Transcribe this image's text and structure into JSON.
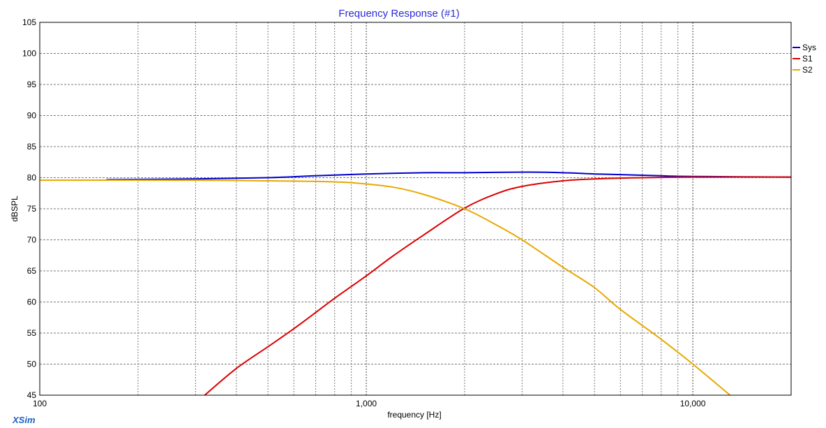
{
  "app": {
    "brand": "XSim"
  },
  "chart_data": {
    "type": "line",
    "title": "Frequency Response (#1)",
    "xlabel": "frequency [Hz]",
    "ylabel": "dBSPL",
    "xscale": "log",
    "xlim": [
      100,
      20000
    ],
    "ylim": [
      45,
      105
    ],
    "grid": true,
    "legend_position": "top-right",
    "x_ticks": [
      {
        "value": 100,
        "label": "100"
      },
      {
        "value": 1000,
        "label": "1,000"
      },
      {
        "value": 10000,
        "label": "10,000"
      }
    ],
    "y_ticks": [
      {
        "value": 105,
        "label": "105"
      },
      {
        "value": 100,
        "label": "100"
      },
      {
        "value": 95,
        "label": "95"
      },
      {
        "value": 90,
        "label": "90"
      },
      {
        "value": 85,
        "label": "85"
      },
      {
        "value": 80,
        "label": "80"
      },
      {
        "value": 75,
        "label": "75"
      },
      {
        "value": 70,
        "label": "70"
      },
      {
        "value": 65,
        "label": "65"
      },
      {
        "value": 60,
        "label": "60"
      },
      {
        "value": 55,
        "label": "55"
      },
      {
        "value": 50,
        "label": "50"
      },
      {
        "value": 45,
        "label": "45"
      }
    ],
    "series": [
      {
        "name": "Sys",
        "color": "#0000cc",
        "points": [
          [
            160,
            79.7
          ],
          [
            300,
            79.8
          ],
          [
            500,
            80.0
          ],
          [
            700,
            80.3
          ],
          [
            1000,
            80.6
          ],
          [
            1500,
            80.8
          ],
          [
            2000,
            80.8
          ],
          [
            3000,
            80.9
          ],
          [
            4000,
            80.8
          ],
          [
            5000,
            80.6
          ],
          [
            6000,
            80.5
          ],
          [
            8000,
            80.3
          ],
          [
            10000,
            80.2
          ],
          [
            20000,
            80.1
          ]
        ]
      },
      {
        "name": "S1",
        "color": "#dd0000",
        "points": [
          [
            320,
            45.0
          ],
          [
            400,
            49.3
          ],
          [
            500,
            52.8
          ],
          [
            600,
            55.7
          ],
          [
            700,
            58.3
          ],
          [
            800,
            60.6
          ],
          [
            1000,
            64.2
          ],
          [
            1200,
            67.3
          ],
          [
            1500,
            70.8
          ],
          [
            2000,
            75.1
          ],
          [
            2500,
            77.4
          ],
          [
            3000,
            78.6
          ],
          [
            4000,
            79.5
          ],
          [
            5000,
            79.8
          ],
          [
            7000,
            80.0
          ],
          [
            10000,
            80.1
          ],
          [
            20000,
            80.1
          ]
        ]
      },
      {
        "name": "S2",
        "color": "#e8a800",
        "points": [
          [
            100,
            79.6
          ],
          [
            300,
            79.6
          ],
          [
            500,
            79.5
          ],
          [
            700,
            79.4
          ],
          [
            900,
            79.2
          ],
          [
            1200,
            78.5
          ],
          [
            1500,
            77.3
          ],
          [
            2000,
            75.0
          ],
          [
            2500,
            72.4
          ],
          [
            3000,
            70.0
          ],
          [
            4000,
            65.6
          ],
          [
            5000,
            62.3
          ],
          [
            6000,
            58.8
          ],
          [
            8000,
            54.0
          ],
          [
            10000,
            50.0
          ],
          [
            13000,
            45.0
          ]
        ]
      }
    ]
  }
}
